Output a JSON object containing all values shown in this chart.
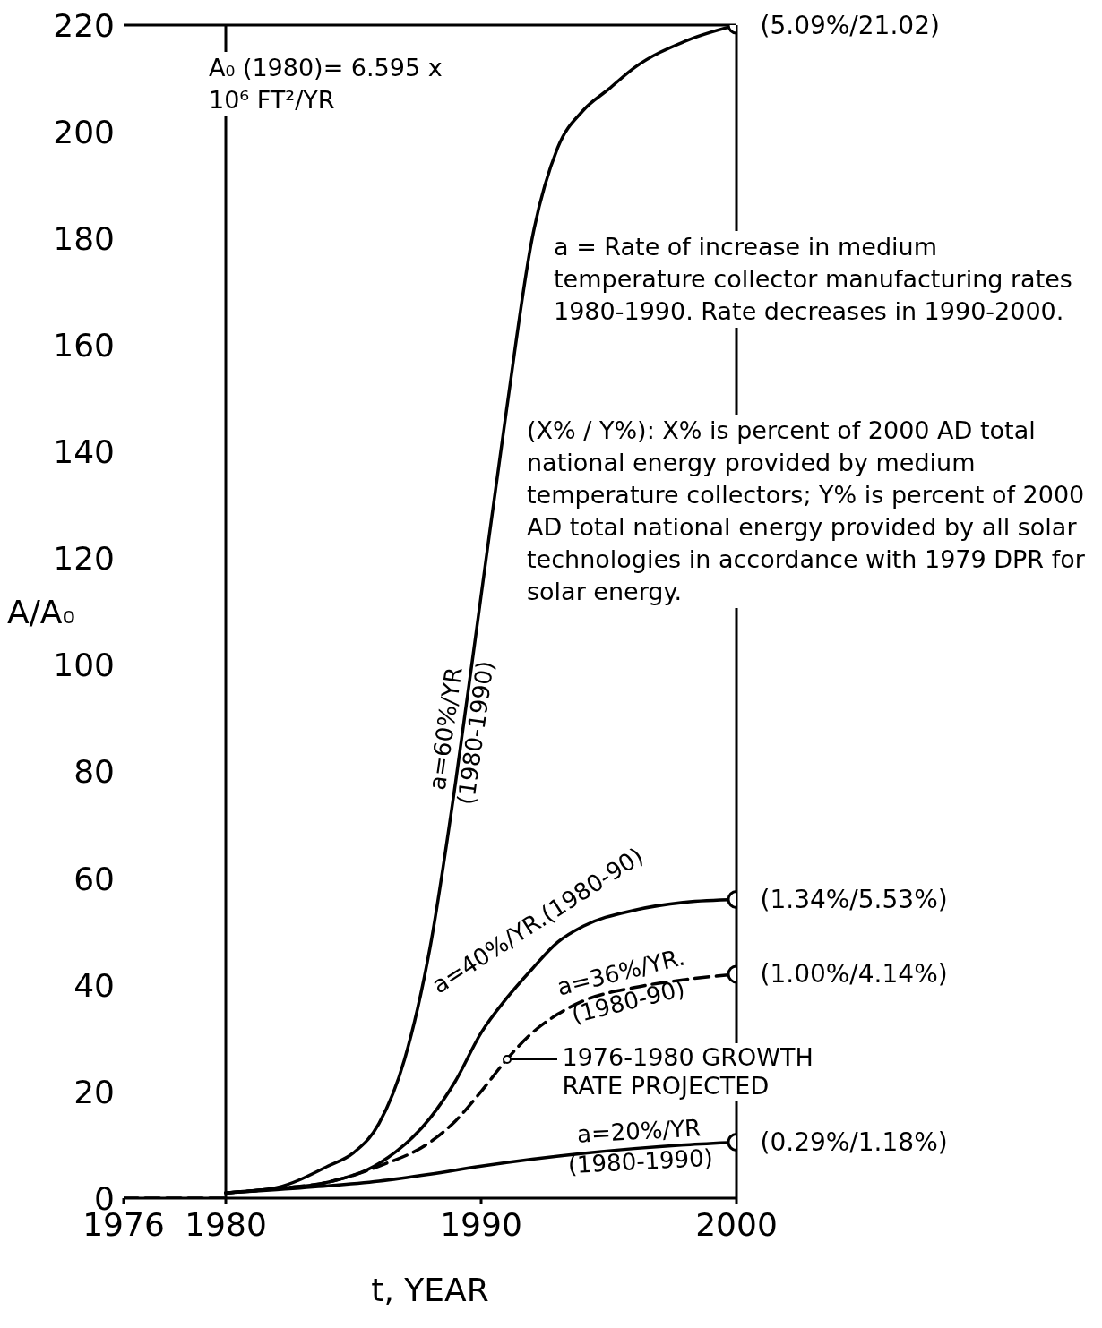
{
  "chart_data": {
    "type": "line",
    "xlabel": "t, YEAR",
    "ylabel": "A/A₀",
    "xlim": [
      1976,
      2000
    ],
    "xticks": [
      1976,
      1980,
      1990,
      2000
    ],
    "ylim": [
      0,
      220
    ],
    "yticks": [
      0,
      20,
      40,
      60,
      80,
      100,
      120,
      140,
      160,
      180,
      200,
      220
    ],
    "marker": "none",
    "line_style": "solid",
    "series": [
      {
        "name": "a=60%/YR (1980-1990)",
        "color": "#000000",
        "x": [
          1980,
          1982,
          1984,
          1985,
          1986,
          1987,
          1988,
          1989,
          1990,
          1991,
          1992,
          1993,
          1994,
          1995,
          1996,
          1998,
          2000
        ],
        "values": [
          1,
          2,
          6,
          8.5,
          14,
          26,
          47,
          78,
          113,
          148,
          180,
          197,
          204,
          208,
          212,
          217,
          220
        ]
      },
      {
        "name": "a=40%/YR.(1980-90)",
        "color": "#000000",
        "x": [
          1980,
          1982,
          1984,
          1986,
          1988,
          1989,
          1990,
          1991,
          1992,
          1993,
          1994,
          1996,
          1998,
          2000
        ],
        "values": [
          1,
          1.8,
          3,
          6.5,
          15,
          22,
          31,
          37.5,
          43,
          48,
          51,
          54,
          55.5,
          56
        ]
      },
      {
        "name": "a=36%/YR. (1980-90)",
        "color": "#000000",
        "line_style": "dashed",
        "x": [
          1980,
          1982,
          1984,
          1986,
          1988,
          1989,
          1990,
          1991,
          1992,
          1993,
          1994,
          1996,
          1998,
          2000
        ],
        "values": [
          1,
          1.8,
          3,
          6,
          10.5,
          14.5,
          20,
          26,
          31,
          34.5,
          37,
          39.5,
          41,
          42
        ]
      },
      {
        "name": "a=20%/YR (1980-1990)",
        "color": "#000000",
        "x": [
          1980,
          1982,
          1984,
          1986,
          1988,
          1990,
          1992,
          1994,
          1996,
          1998,
          2000
        ],
        "values": [
          1,
          1.6,
          2.3,
          3.2,
          4.5,
          6,
          7.3,
          8.4,
          9.3,
          10,
          10.5
        ]
      },
      {
        "color": "#000000",
        "line_style": "dashed",
        "x": [
          1976,
          1980
        ],
        "values": [
          0,
          0
        ]
      },
      {
        "type": "scatter",
        "color": "#000000",
        "marker": "circle",
        "x": [
          2000,
          2000,
          2000,
          2000
        ],
        "values": [
          220,
          56,
          42,
          10.5
        ],
        "value_labels": [
          "(5.09%/21.02)",
          "(1.34%/5.53%)",
          "(1.00%/4.14%)",
          "(0.29%/1.18%)"
        ]
      }
    ],
    "ref_lines": [
      {
        "axis": "x",
        "value": 1980,
        "color": "#000000"
      },
      {
        "axis": "x",
        "value": 2000,
        "color": "#000000"
      },
      {
        "axis": "y",
        "value": 220,
        "color": "#000000"
      }
    ],
    "annotations": [
      "A₀ (1980)= 6.595 x 10⁶ FT²/YR",
      "a = Rate of increase in medium temperature collector manufacturing rates 1980-1990. Rate decreases in 1990-2000.",
      "(X% / Y%): X% is percent of 2000 AD total national energy provided by medium temperature collectors; Y% is percent of 2000 AD total national energy provided by all solar technologies in accordance with 1979 DPR for solar energy.",
      {
        "text": "1976-1980 GROWTH RATE PROJECTED",
        "x": 1991,
        "y": 26
      }
    ]
  }
}
